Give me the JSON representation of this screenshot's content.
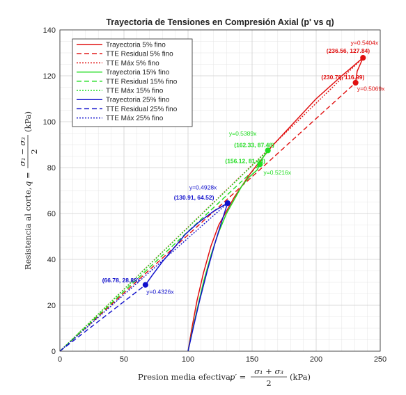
{
  "chart_data": {
    "type": "line",
    "title": "Trayectoria de Tensiones en Compresión Axial (p' vs q)",
    "xlabel_prefix": "Presion media efectiva, ",
    "xlabel_symbol": "p′ =",
    "xlabel_num": "σ₁ + σ₃",
    "xlabel_den": "2",
    "xlabel_unit": "(kPa)",
    "ylabel_prefix": "Resistencia al corte, ",
    "ylabel_symbol": "q =",
    "ylabel_num": "σ₁ − σ₃",
    "ylabel_den": "2",
    "ylabel_unit": "(kPa)",
    "xlim": [
      0,
      250
    ],
    "ylim": [
      0,
      140
    ],
    "xticks": [
      0,
      50,
      100,
      150,
      200,
      250
    ],
    "yticks": [
      0,
      20,
      40,
      60,
      80,
      100,
      120,
      140
    ],
    "grid": true,
    "minor_grid": true,
    "legend_position": "top-left",
    "series": [
      {
        "name": "Trayectoria 5% fino",
        "style": "solid",
        "color": "#e01010",
        "points": [
          [
            100,
            0
          ],
          [
            103,
            10
          ],
          [
            107,
            22
          ],
          [
            112,
            34
          ],
          [
            118,
            46
          ],
          [
            124,
            55
          ],
          [
            130,
            61
          ],
          [
            136,
            67
          ],
          [
            142,
            72
          ],
          [
            148,
            77
          ],
          [
            155,
            82
          ],
          [
            165,
            89
          ],
          [
            180,
            98
          ],
          [
            200,
            110
          ],
          [
            220,
            120
          ],
          [
            236.56,
            127.84
          ],
          [
            232,
            122
          ],
          [
            230.78,
            116.99
          ]
        ]
      },
      {
        "name": "TTE Residual 5% fino",
        "style": "dashed",
        "color": "#e01010",
        "slope": 0.5069,
        "x_end": 230.78
      },
      {
        "name": "TTE Máx 5% fino",
        "style": "dotted",
        "color": "#e01010",
        "slope": 0.5404,
        "x_end": 236.56
      },
      {
        "name": "Trayectoria 15% fino",
        "style": "solid",
        "color": "#22dd22",
        "points": [
          [
            100,
            0
          ],
          [
            103,
            8
          ],
          [
            107,
            18
          ],
          [
            112,
            30
          ],
          [
            118,
            42
          ],
          [
            124,
            52
          ],
          [
            130,
            60
          ],
          [
            136,
            66
          ],
          [
            142,
            72
          ],
          [
            148,
            76
          ],
          [
            154,
            79
          ],
          [
            156.12,
            81.43
          ],
          [
            158,
            84
          ],
          [
            162.33,
            87.48
          ]
        ]
      },
      {
        "name": "TTE Residual 15% fino",
        "style": "dashed",
        "color": "#22dd22",
        "slope": 0.5216,
        "x_end": 156.12
      },
      {
        "name": "TTE Máx 15% fino",
        "style": "dotted",
        "color": "#22dd22",
        "slope": 0.5389,
        "x_end": 162.33
      },
      {
        "name": "Trayectoria 25% fino",
        "style": "solid",
        "color": "#1010cc",
        "points": [
          [
            100,
            0
          ],
          [
            104,
            10
          ],
          [
            109,
            22
          ],
          [
            115,
            35
          ],
          [
            121,
            47
          ],
          [
            126,
            56
          ],
          [
            130.91,
            64.52
          ],
          [
            120,
            61
          ],
          [
            108,
            56
          ],
          [
            98,
            51
          ],
          [
            89,
            45
          ],
          [
            80,
            39
          ],
          [
            72,
            33
          ],
          [
            66.78,
            28.89
          ]
        ]
      },
      {
        "name": "TTE Residual 25% fino",
        "style": "dashed",
        "color": "#1010cc",
        "slope": 0.4326,
        "x_end": 66.78
      },
      {
        "name": "TTE Máx 25% fino",
        "style": "dotted",
        "color": "#1010cc",
        "slope": 0.4928,
        "x_end": 130.91
      }
    ],
    "markers": [
      {
        "x": 236.56,
        "y": 127.84,
        "color": "#e01010"
      },
      {
        "x": 230.78,
        "y": 116.99,
        "color": "#e01010"
      },
      {
        "x": 162.33,
        "y": 87.48,
        "color": "#22dd22"
      },
      {
        "x": 156.12,
        "y": 81.43,
        "color": "#22dd22"
      },
      {
        "x": 130.91,
        "y": 64.52,
        "color": "#1010cc"
      },
      {
        "x": 66.78,
        "y": 28.89,
        "color": "#1010cc"
      }
    ],
    "annotations": [
      {
        "text": "y=0.5404x",
        "color": "#e01010",
        "bold": false,
        "x": 227,
        "y": 133.5
      },
      {
        "text": "(236.56, 127.84)",
        "color": "#e01010",
        "bold": true,
        "x": 208,
        "y": 130
      },
      {
        "text": "(230.78, 116.99)",
        "color": "#e01010",
        "bold": true,
        "x": 204,
        "y": 118.5
      },
      {
        "text": "y=0.5069x",
        "color": "#e01010",
        "bold": false,
        "x": 232,
        "y": 113.5
      },
      {
        "text": "y=0.5389x",
        "color": "#22dd22",
        "bold": false,
        "x": 132,
        "y": 94
      },
      {
        "text": "(162.33, 87.48)",
        "color": "#22dd22",
        "bold": true,
        "x": 136,
        "y": 89
      },
      {
        "text": "(156.12, 81.43)",
        "color": "#22dd22",
        "bold": true,
        "x": 129,
        "y": 82
      },
      {
        "text": "y=0.5216x",
        "color": "#22dd22",
        "bold": false,
        "x": 159,
        "y": 77
      },
      {
        "text": "y=0.4928x",
        "color": "#1010cc",
        "bold": false,
        "x": 101,
        "y": 70.5
      },
      {
        "text": "(130.91, 64.52)",
        "color": "#1010cc",
        "bold": true,
        "x": 89,
        "y": 66
      },
      {
        "text": "(66.78, 28.89)",
        "color": "#1010cc",
        "bold": true,
        "x": 33,
        "y": 30
      },
      {
        "text": "y=0.4326x",
        "color": "#1010cc",
        "bold": false,
        "x": 67.5,
        "y": 25
      }
    ]
  }
}
